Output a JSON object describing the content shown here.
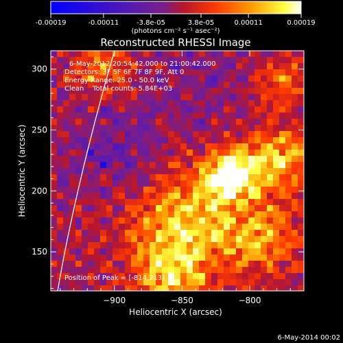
{
  "chart_data": {
    "type": "heatmap",
    "title": "Reconstructed RHESSI Image",
    "xlabel": "Heliocentric X (arcsec)",
    "ylabel": "Heliocentric Y (arcsec)",
    "x_ticks": [
      "-900",
      "-850",
      "-800"
    ],
    "x_tick_values": [
      -900,
      -850,
      -800
    ],
    "y_ticks": [
      "150",
      "200",
      "250",
      "300"
    ],
    "y_tick_values": [
      150,
      200,
      250,
      300
    ],
    "xlim": [
      -947,
      -760
    ],
    "ylim": [
      118,
      315
    ],
    "colorbar": {
      "ticks": [
        "-0.00019",
        "-0.00011",
        "-3.8e-05",
        "3.8e-05",
        "0.00011",
        "0.00019"
      ],
      "tick_values": [
        -0.00019,
        -0.00011,
        -3.8e-05,
        3.8e-05,
        0.00011,
        0.00019
      ],
      "range": [
        -0.00019,
        0.00019
      ],
      "unit_label": "(photons cm⁻² s⁻¹ asec⁻²)"
    },
    "annotations": {
      "time_range": "6-May-2012 20:54:42.000 to 21:00:42.000",
      "detectors": "Detectors: 3F 5F 6F 7F 8F 9F, Att 0",
      "energy_range": "Energy Range: 25.0 - 50.0 keV",
      "clean_counts": "Clean    Total counts: 5.84E+03",
      "peak": "Position of Peak = [-814,213]"
    },
    "peak": {
      "x": -814,
      "y": 213
    },
    "grid": false,
    "limb_curve": true
  },
  "footer_date": "6-May-2014 00:02",
  "colors": {
    "background": "#000000",
    "foreground": "#ffffff",
    "colormap": [
      "#0000ff",
      "#5a1ab0",
      "#7a1e8a",
      "#b8162e",
      "#ff3a00",
      "#ff9a00",
      "#ffff40",
      "#ffffff"
    ]
  }
}
